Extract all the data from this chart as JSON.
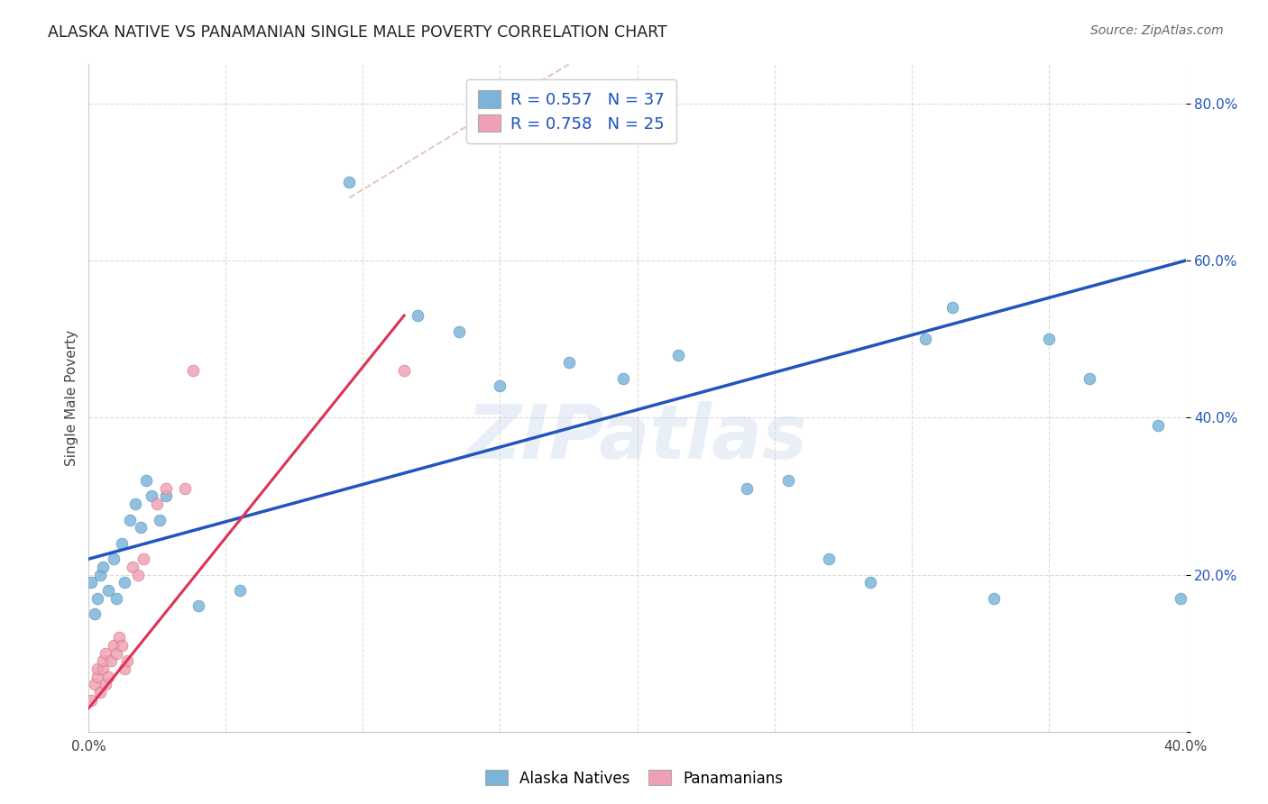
{
  "title": "ALASKA NATIVE VS PANAMANIAN SINGLE MALE POVERTY CORRELATION CHART",
  "source": "Source: ZipAtlas.com",
  "ylabel": "Single Male Poverty",
  "xlim": [
    0.0,
    0.4
  ],
  "ylim": [
    0.0,
    0.85
  ],
  "background_color": "#ffffff",
  "grid_color": "#cccccc",
  "watermark": "ZIPatlas",
  "legend_r1": "R = 0.557   N = 37",
  "legend_r2": "R = 0.758   N = 25",
  "alaska_color": "#7ab4d8",
  "alaska_edge": "#5590bb",
  "panama_color": "#f0a0b4",
  "panama_edge": "#d07080",
  "blue_line_color": "#2255bb",
  "red_line_color": "#dd3355",
  "dashed_line_color": "#e0b8b8",
  "marker_size": 85,
  "alaska_x": [
    0.001,
    0.002,
    0.003,
    0.004,
    0.005,
    0.007,
    0.009,
    0.01,
    0.012,
    0.013,
    0.015,
    0.017,
    0.019,
    0.021,
    0.023,
    0.026,
    0.028,
    0.04,
    0.055,
    0.095,
    0.12,
    0.135,
    0.15,
    0.175,
    0.195,
    0.215,
    0.24,
    0.255,
    0.27,
    0.285,
    0.305,
    0.315,
    0.33,
    0.35,
    0.365,
    0.39,
    0.398
  ],
  "alaska_y": [
    0.19,
    0.15,
    0.17,
    0.2,
    0.21,
    0.18,
    0.22,
    0.17,
    0.24,
    0.19,
    0.27,
    0.29,
    0.26,
    0.32,
    0.3,
    0.27,
    0.3,
    0.16,
    0.18,
    0.7,
    0.53,
    0.51,
    0.44,
    0.47,
    0.45,
    0.48,
    0.31,
    0.32,
    0.22,
    0.19,
    0.5,
    0.54,
    0.17,
    0.5,
    0.45,
    0.39,
    0.17
  ],
  "panama_x": [
    0.001,
    0.002,
    0.003,
    0.003,
    0.004,
    0.005,
    0.005,
    0.006,
    0.006,
    0.007,
    0.008,
    0.009,
    0.01,
    0.011,
    0.012,
    0.013,
    0.014,
    0.016,
    0.018,
    0.02,
    0.025,
    0.028,
    0.035,
    0.038,
    0.115
  ],
  "panama_y": [
    0.04,
    0.06,
    0.07,
    0.08,
    0.05,
    0.08,
    0.09,
    0.06,
    0.1,
    0.07,
    0.09,
    0.11,
    0.1,
    0.12,
    0.11,
    0.08,
    0.09,
    0.21,
    0.2,
    0.22,
    0.29,
    0.31,
    0.31,
    0.46,
    0.46
  ],
  "blue_line_x": [
    0.0,
    0.4
  ],
  "blue_line_y": [
    0.22,
    0.6
  ],
  "red_line_x": [
    0.0,
    0.115
  ],
  "red_line_y": [
    0.03,
    0.53
  ],
  "dash_line_x": [
    0.095,
    0.175
  ],
  "dash_line_y": [
    0.68,
    0.85
  ]
}
